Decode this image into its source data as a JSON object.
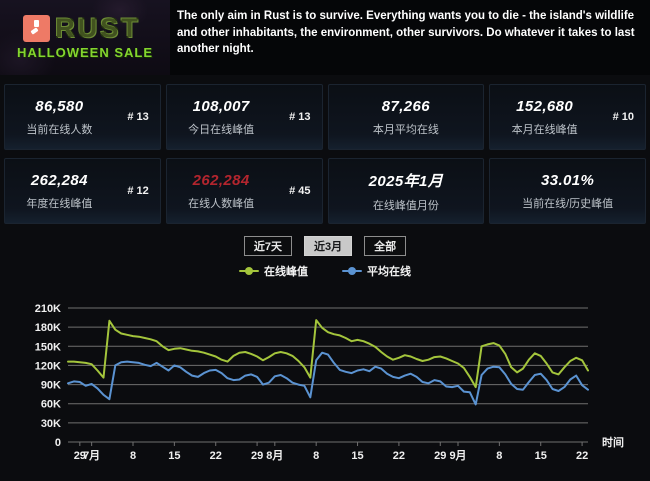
{
  "header": {
    "banner": {
      "title": "RUST",
      "subtitle": "HALLOWEEN SALE"
    },
    "description": "The only aim in Rust is to survive. Everything wants you to die - the island's wildlife and other inhabitants, the environment, other survivors. Do whatever it takes to last another night."
  },
  "stats": {
    "cards": [
      {
        "value": "86,580",
        "label": "当前在线人数",
        "rank": "# 13",
        "value_color": "#ffffff"
      },
      {
        "value": "108,007",
        "label": "今日在线峰值",
        "rank": "# 13",
        "value_color": "#ffffff"
      },
      {
        "value": "87,266",
        "label": "本月平均在线",
        "rank": "",
        "value_color": "#ffffff"
      },
      {
        "value": "152,680",
        "label": "本月在线峰值",
        "rank": "# 10",
        "value_color": "#ffffff"
      },
      {
        "value": "262,284",
        "label": "年度在线峰值",
        "rank": "# 12",
        "value_color": "#ffffff"
      },
      {
        "value": "262,284",
        "label": "在线人数峰值",
        "rank": "# 45",
        "value_color": "#b3252e"
      },
      {
        "value": "2025年1月",
        "label": "在线峰值月份",
        "rank": "",
        "value_color": "#ffffff"
      },
      {
        "value": "33.01%",
        "label": "当前在线/历史峰值",
        "rank": "",
        "value_color": "#ffffff"
      }
    ]
  },
  "controls": {
    "tabs": [
      {
        "label": "近7天",
        "active": false
      },
      {
        "label": "近3月",
        "active": true
      },
      {
        "label": "全部",
        "active": false
      }
    ]
  },
  "chart_data": {
    "type": "line",
    "title": "",
    "xlabel": "时间",
    "ylabel": "",
    "y_unit": "K (thousands of concurrent players)",
    "ylim": [
      0,
      210
    ],
    "grid": true,
    "legend_position": "top-center",
    "y_ticks": [
      "210K",
      "180K",
      "150K",
      "120K",
      "90K",
      "60K",
      "30K",
      "0"
    ],
    "x_ticks": [
      {
        "label": "29",
        "day": 2,
        "bold": false
      },
      {
        "label": "7月",
        "day": 4,
        "bold": true
      },
      {
        "label": "8",
        "day": 11,
        "bold": false
      },
      {
        "label": "15",
        "day": 18,
        "bold": false
      },
      {
        "label": "22",
        "day": 25,
        "bold": false
      },
      {
        "label": "29",
        "day": 32,
        "bold": false
      },
      {
        "label": "8月",
        "day": 35,
        "bold": true
      },
      {
        "label": "8",
        "day": 42,
        "bold": false
      },
      {
        "label": "15",
        "day": 49,
        "bold": false
      },
      {
        "label": "22",
        "day": 56,
        "bold": false
      },
      {
        "label": "29",
        "day": 63,
        "bold": false
      },
      {
        "label": "9月",
        "day": 66,
        "bold": true
      },
      {
        "label": "8",
        "day": 73,
        "bold": false
      },
      {
        "label": "15",
        "day": 80,
        "bold": false
      },
      {
        "label": "22",
        "day": 87,
        "bold": false
      }
    ],
    "legend": [
      {
        "name": "在线峰值",
        "color": "#a4c53c"
      },
      {
        "name": "平均在线",
        "color": "#5b93d2"
      }
    ],
    "series": [
      {
        "name": "在线峰值",
        "color": "#a4c53c",
        "values": [
          126,
          126,
          125,
          124,
          122,
          112,
          101,
          190,
          176,
          170,
          168,
          166,
          165,
          163,
          161,
          158,
          150,
          144,
          146,
          147,
          145,
          143,
          142,
          140,
          137,
          134,
          129,
          126,
          135,
          140,
          141,
          138,
          134,
          128,
          133,
          139,
          141,
          139,
          135,
          127,
          117,
          101,
          191,
          179,
          172,
          169,
          167,
          163,
          158,
          160,
          158,
          154,
          149,
          141,
          134,
          129,
          132,
          136,
          134,
          130,
          127,
          129,
          133,
          134,
          131,
          127,
          123,
          116,
          102,
          86,
          150,
          153,
          155,
          151,
          138,
          117,
          109,
          115,
          129,
          139,
          135,
          123,
          109,
          106,
          117,
          127,
          132,
          128,
          112
        ]
      },
      {
        "name": "平均在线",
        "color": "#5b93d2",
        "values": [
          92,
          95,
          94,
          88,
          91,
          84,
          74,
          67,
          120,
          125,
          126,
          125,
          124,
          121,
          119,
          124,
          118,
          112,
          120,
          117,
          110,
          104,
          102,
          108,
          112,
          113,
          108,
          100,
          97,
          98,
          104,
          106,
          102,
          90,
          93,
          103,
          105,
          100,
          93,
          90,
          88,
          70,
          128,
          140,
          137,
          124,
          113,
          110,
          108,
          112,
          114,
          111,
          118,
          115,
          107,
          102,
          100,
          104,
          107,
          102,
          94,
          92,
          97,
          95,
          87,
          86,
          88,
          79,
          78,
          59,
          105,
          115,
          118,
          117,
          106,
          91,
          83,
          82,
          94,
          105,
          107,
          97,
          83,
          80,
          86,
          98,
          104,
          89,
          82
        ]
      }
    ]
  }
}
